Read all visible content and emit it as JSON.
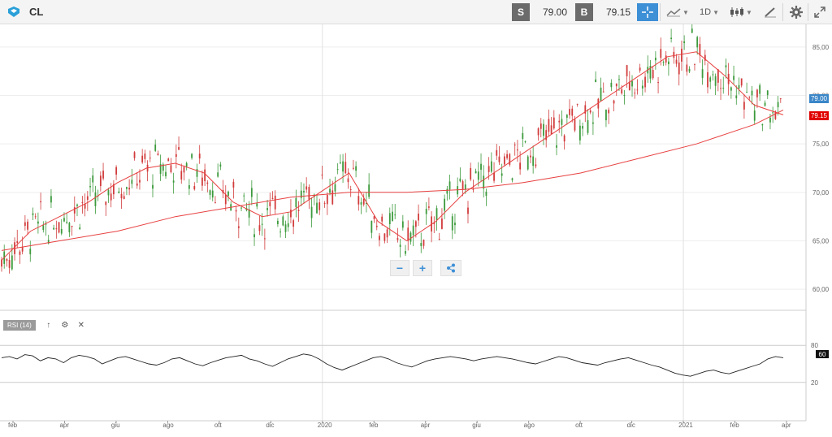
{
  "toolbar": {
    "symbol": "CL",
    "sell_label": "S",
    "sell_price": "79.00",
    "buy_label": "B",
    "buy_price": "79.15",
    "period": "1D",
    "icons": [
      "logo-icon",
      "crosshair-icon",
      "line-chart-icon",
      "candlestick-icon",
      "draw-icon",
      "gear-icon",
      "fullscreen-icon"
    ]
  },
  "price_badges": {
    "sell": "79.00",
    "buy": "79.15"
  },
  "zoom": {
    "out_label": "−",
    "in_label": "+"
  },
  "rsi": {
    "label": "RSI (14)",
    "value": "60",
    "ticks": [
      "80",
      "20"
    ]
  },
  "chart_data": [
    {
      "type": "candlestick",
      "title": "",
      "y_ticks": [
        "85,00",
        "80,00",
        "75,00",
        "70,00",
        "65,00",
        "60,00"
      ],
      "ylim": [
        58,
        87
      ],
      "x_ticks": [
        "feb",
        "apr",
        "giu",
        "ago",
        "ott",
        "dic",
        "2020",
        "feb",
        "apr",
        "giu",
        "ago",
        "ott",
        "dic",
        "2021",
        "feb",
        "apr"
      ],
      "series": [
        {
          "name": "",
          "color": "#e84040",
          "points": [
            [
              0,
              63
            ],
            [
              10,
              66
            ],
            [
              20,
              67.5
            ],
            [
              30,
              69
            ],
            [
              40,
              71
            ],
            [
              50,
              72.5
            ],
            [
              60,
              73
            ],
            [
              70,
              72
            ],
            [
              80,
              69
            ],
            [
              90,
              67.5
            ],
            [
              100,
              68
            ],
            [
              110,
              70
            ],
            [
              120,
              72
            ],
            [
              130,
              67
            ],
            [
              140,
              65
            ],
            [
              150,
              67
            ],
            [
              160,
              70
            ],
            [
              170,
              72
            ],
            [
              180,
              74
            ],
            [
              190,
              76
            ],
            [
              200,
              78
            ],
            [
              210,
              80
            ],
            [
              220,
              82
            ],
            [
              230,
              84
            ],
            [
              240,
              84.5
            ],
            [
              250,
              82
            ],
            [
              260,
              79
            ],
            [
              270,
              78
            ]
          ]
        },
        {
          "name": "",
          "color": "#e84040",
          "points": [
            [
              0,
              64
            ],
            [
              20,
              65
            ],
            [
              40,
              66
            ],
            [
              60,
              67.5
            ],
            [
              80,
              68.5
            ],
            [
              100,
              69.5
            ],
            [
              120,
              70
            ],
            [
              140,
              70
            ],
            [
              160,
              70.3
            ],
            [
              180,
              71
            ],
            [
              200,
              72
            ],
            [
              220,
              73.5
            ],
            [
              240,
              75
            ],
            [
              260,
              77
            ],
            [
              270,
              78.5
            ]
          ]
        }
      ],
      "candles_visible": true,
      "grid": true
    },
    {
      "type": "line",
      "title": "",
      "ylim": [
        0,
        100
      ],
      "series": [
        {
          "name": "",
          "color": "#222222",
          "values": [
            60,
            62,
            58,
            65,
            63,
            55,
            60,
            58,
            52,
            60,
            64,
            62,
            58,
            50,
            55,
            60,
            62,
            58,
            54,
            50,
            48,
            52,
            58,
            60,
            55,
            50,
            47,
            52,
            56,
            60,
            62,
            64,
            58,
            55,
            50,
            46,
            52,
            58,
            62,
            66,
            64,
            58,
            50,
            44,
            40,
            45,
            50,
            55,
            60,
            62,
            58,
            52,
            48,
            45,
            50,
            55,
            58,
            60,
            62,
            60,
            58,
            55,
            58,
            60,
            62,
            60,
            58,
            55,
            52,
            50,
            54,
            58,
            62,
            60,
            56,
            52,
            50,
            48,
            52,
            55,
            58,
            60,
            56,
            52,
            48,
            45,
            40,
            35,
            32,
            30,
            34,
            38,
            40,
            36,
            34,
            38,
            42,
            46,
            50,
            58,
            62,
            60
          ]
        }
      ],
      "ref_lines": [
        80,
        20
      ]
    }
  ]
}
